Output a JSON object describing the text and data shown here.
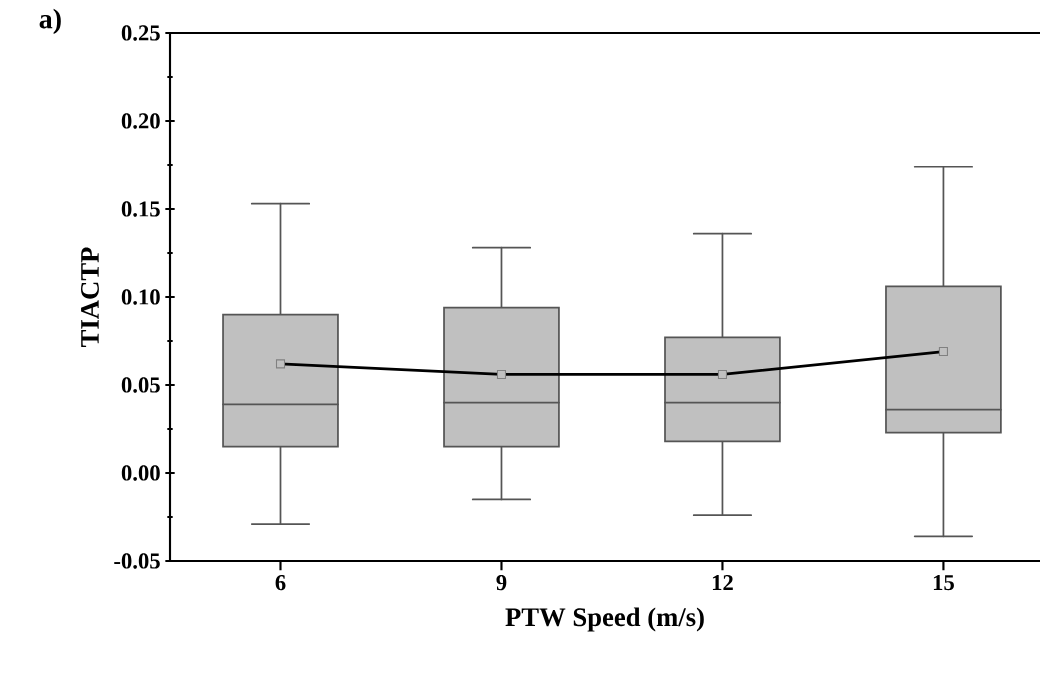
{
  "chart_data": {
    "type": "box",
    "categories": [
      "6",
      "9",
      "12",
      "15"
    ],
    "boxes": [
      {
        "low": -0.029,
        "q1": 0.015,
        "median": 0.039,
        "q3": 0.09,
        "high": 0.153
      },
      {
        "low": -0.015,
        "q1": 0.015,
        "median": 0.04,
        "q3": 0.094,
        "high": 0.128
      },
      {
        "low": -0.024,
        "q1": 0.018,
        "median": 0.04,
        "q3": 0.077,
        "high": 0.136
      },
      {
        "low": -0.036,
        "q1": 0.023,
        "median": 0.036,
        "q3": 0.106,
        "high": 0.174
      }
    ],
    "color": "#c0c0c0",
    "series": [
      {
        "type": "line",
        "values": [
          0.062,
          0.056,
          0.056,
          0.069
        ],
        "color": "#000000",
        "marker": "square"
      }
    ],
    "xlabel": "PTW Speed (m/s)",
    "ylabel": "TIACTP",
    "ylim": [
      -0.05,
      0.25
    ],
    "yticks": [
      {
        "value": -0.05,
        "label": "-0.05"
      },
      {
        "value": 0,
        "label": "0.00"
      },
      {
        "value": 0.05,
        "label": "0.05"
      },
      {
        "value": 0.1,
        "label": "0.10"
      },
      {
        "value": 0.15,
        "label": "0.15"
      },
      {
        "value": 0.2,
        "label": "0.20"
      },
      {
        "value": 0.25,
        "label": "0.25"
      }
    ],
    "annotations": [
      "a)"
    ]
  }
}
